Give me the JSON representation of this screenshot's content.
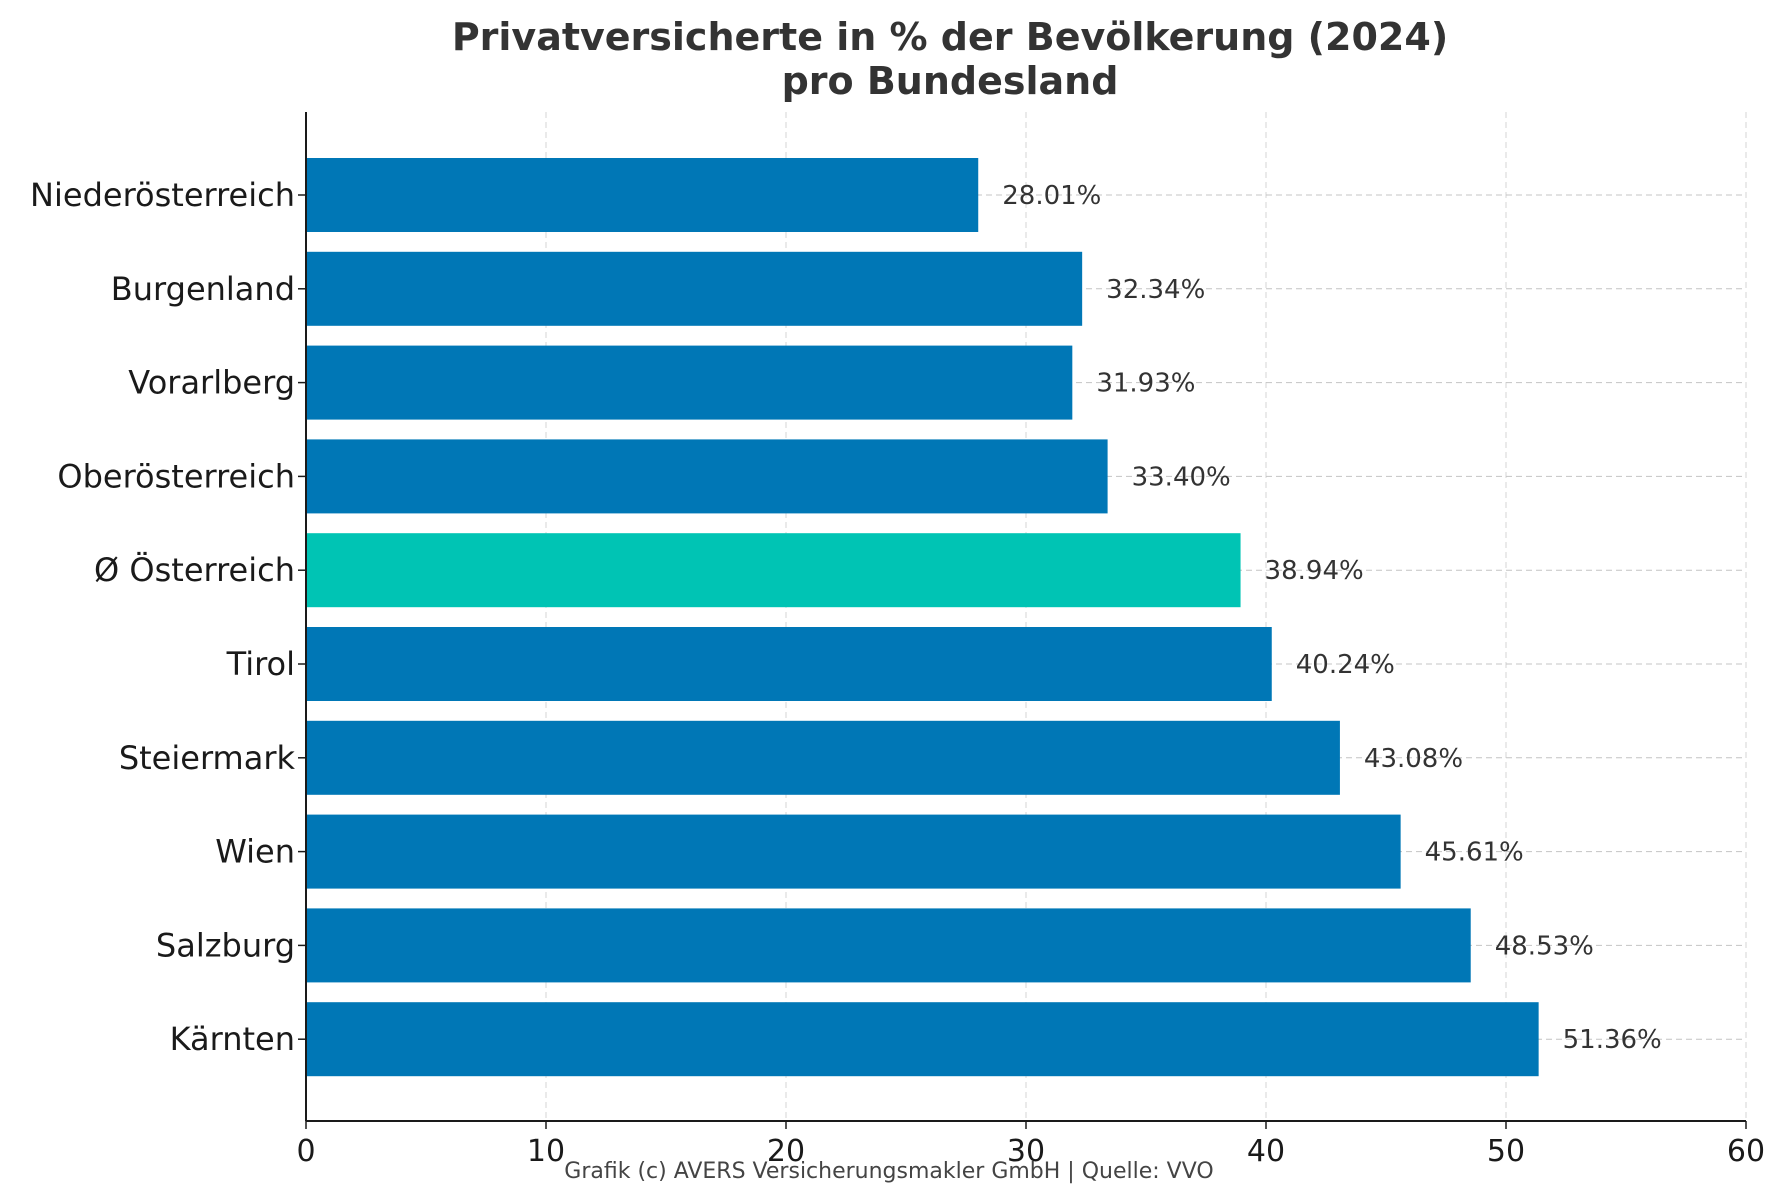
{
  "chart_data": {
    "type": "bar",
    "orientation": "horizontal",
    "title": "Privatversicherte in % der Bevölkerung (2024)",
    "subtitle": "pro Bundesland",
    "xlabel": "",
    "ylabel": "",
    "xlim": [
      0,
      60
    ],
    "xticks": [
      0,
      10,
      20,
      30,
      40,
      50,
      60
    ],
    "grid": true,
    "categories": [
      "Niederösterreich",
      "Burgenland",
      "Vorarlberg",
      "Oberösterreich",
      "Ø Österreich",
      "Tirol",
      "Steiermark",
      "Wien",
      "Salzburg",
      "Kärnten"
    ],
    "values": [
      28.01,
      32.34,
      31.93,
      33.4,
      38.94,
      40.24,
      43.08,
      45.61,
      48.53,
      51.36
    ],
    "value_labels": [
      "28.01%",
      "32.34%",
      "31.93%",
      "33.40%",
      "38.94%",
      "40.24%",
      "43.08%",
      "45.61%",
      "48.53%",
      "51.36%"
    ],
    "colors": [
      "#0077b6",
      "#0077b6",
      "#0077b6",
      "#0077b6",
      "#00c4b4",
      "#0077b6",
      "#0077b6",
      "#0077b6",
      "#0077b6",
      "#0077b6"
    ]
  },
  "footer": "Grafik (c) AVERS Versicherungsmakler GmbH | Quelle: VVO"
}
